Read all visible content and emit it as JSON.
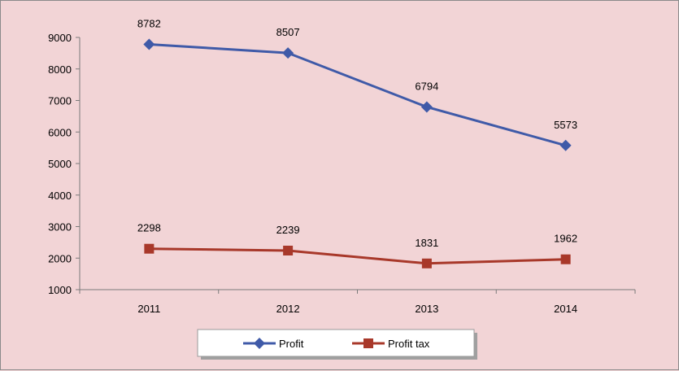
{
  "chart_data": {
    "type": "line",
    "title": "",
    "xlabel": "",
    "ylabel": "",
    "categories": [
      "2011",
      "2012",
      "2013",
      "2014"
    ],
    "ylim": [
      1000,
      9000
    ],
    "yticks": [
      1000,
      2000,
      3000,
      4000,
      5000,
      6000,
      7000,
      8000,
      9000
    ],
    "grid": false,
    "legend_position": "bottom",
    "series": [
      {
        "name": "Profit",
        "values": [
          8782,
          8507,
          6794,
          5573
        ],
        "color": "#3f5aa8",
        "marker": "diamond",
        "labels": [
          "8782",
          "8507",
          "6794",
          "5573"
        ]
      },
      {
        "name": "Profit tax",
        "values": [
          2298,
          2239,
          1831,
          1962
        ],
        "color": "#a8382a",
        "marker": "square",
        "labels": [
          "2298",
          "2239",
          "1831",
          "1962"
        ]
      }
    ]
  }
}
